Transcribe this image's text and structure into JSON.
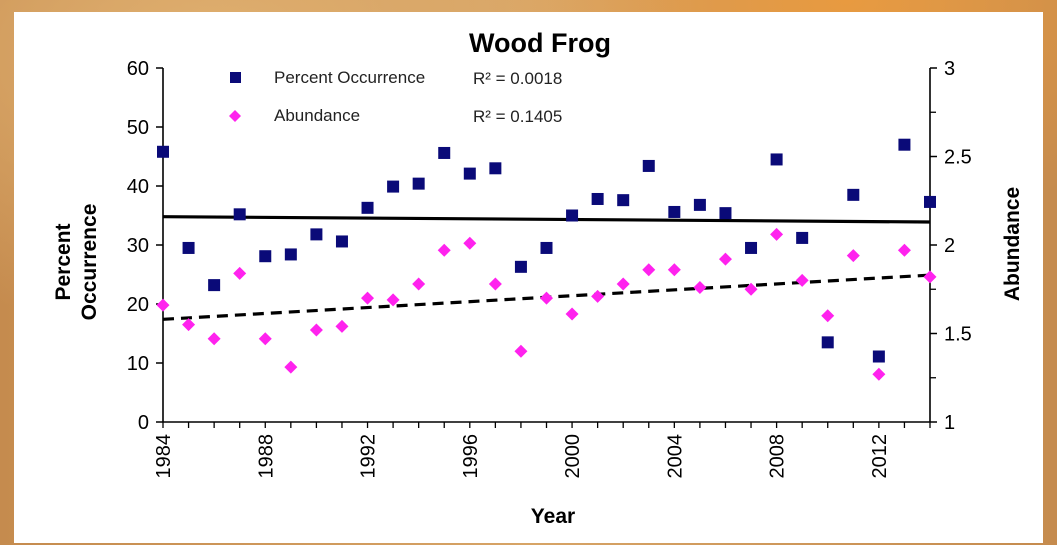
{
  "chart_data": {
    "type": "scatter",
    "title": "Wood Frog",
    "xlabel": "Year",
    "ylabel": [
      "Percent",
      "Occurrence"
    ],
    "y2label": "Abundance",
    "xlim": [
      1984,
      2014
    ],
    "ylim": [
      0,
      60
    ],
    "y2lim": [
      1,
      3
    ],
    "x_ticks": [
      1984,
      1988,
      1992,
      1996,
      2000,
      2004,
      2008,
      2012
    ],
    "y_ticks": [
      0,
      10,
      20,
      30,
      40,
      50,
      60
    ],
    "y2_ticks": [
      1,
      1.5,
      2,
      2.5,
      3
    ],
    "legend_position": "top-left",
    "series": [
      {
        "name": "Percent Occurrence",
        "axis": "left",
        "marker": "square",
        "color": "#0a0a78",
        "r2": "R² = 0.0018",
        "trend": {
          "style": "solid",
          "start": [
            1984,
            34.8
          ],
          "end": [
            2014,
            33.9
          ]
        },
        "x": [
          1984,
          1985,
          1986,
          1987,
          1988,
          1989,
          1990,
          1991,
          1992,
          1993,
          1994,
          1995,
          1996,
          1997,
          1998,
          1999,
          2000,
          2001,
          2002,
          2003,
          2004,
          2005,
          2006,
          2007,
          2008,
          2009,
          2010,
          2011,
          2012,
          2013,
          2014
        ],
        "y": [
          45.8,
          29.5,
          23.2,
          35.2,
          28.1,
          28.4,
          31.8,
          30.6,
          36.3,
          39.9,
          40.4,
          45.6,
          42.1,
          43.0,
          26.3,
          29.5,
          35.0,
          37.8,
          37.6,
          43.4,
          35.6,
          36.8,
          35.4,
          29.5,
          44.5,
          31.2,
          13.5,
          38.5,
          11.1,
          47.0,
          37.3
        ]
      },
      {
        "name": "Abundance",
        "axis": "right",
        "marker": "diamond",
        "color": "#ff22ee",
        "r2": "R² = 0.1405",
        "trend": {
          "style": "dashed",
          "start": [
            1984,
            1.58
          ],
          "end": [
            2014,
            1.83
          ]
        },
        "x": [
          1984,
          1985,
          1986,
          1987,
          1988,
          1989,
          1990,
          1991,
          1992,
          1993,
          1994,
          1995,
          1996,
          1997,
          1998,
          1999,
          2000,
          2001,
          2002,
          2003,
          2004,
          2005,
          2006,
          2007,
          2008,
          2009,
          2010,
          2011,
          2012,
          2013,
          2014
        ],
        "y": [
          1.66,
          1.55,
          1.47,
          1.84,
          1.47,
          1.31,
          1.52,
          1.54,
          1.7,
          1.69,
          1.78,
          1.97,
          2.01,
          1.78,
          1.4,
          1.7,
          1.61,
          1.71,
          1.78,
          1.86,
          1.86,
          1.76,
          1.92,
          1.75,
          2.06,
          1.8,
          1.6,
          1.94,
          1.27,
          1.97,
          1.82
        ]
      }
    ]
  }
}
